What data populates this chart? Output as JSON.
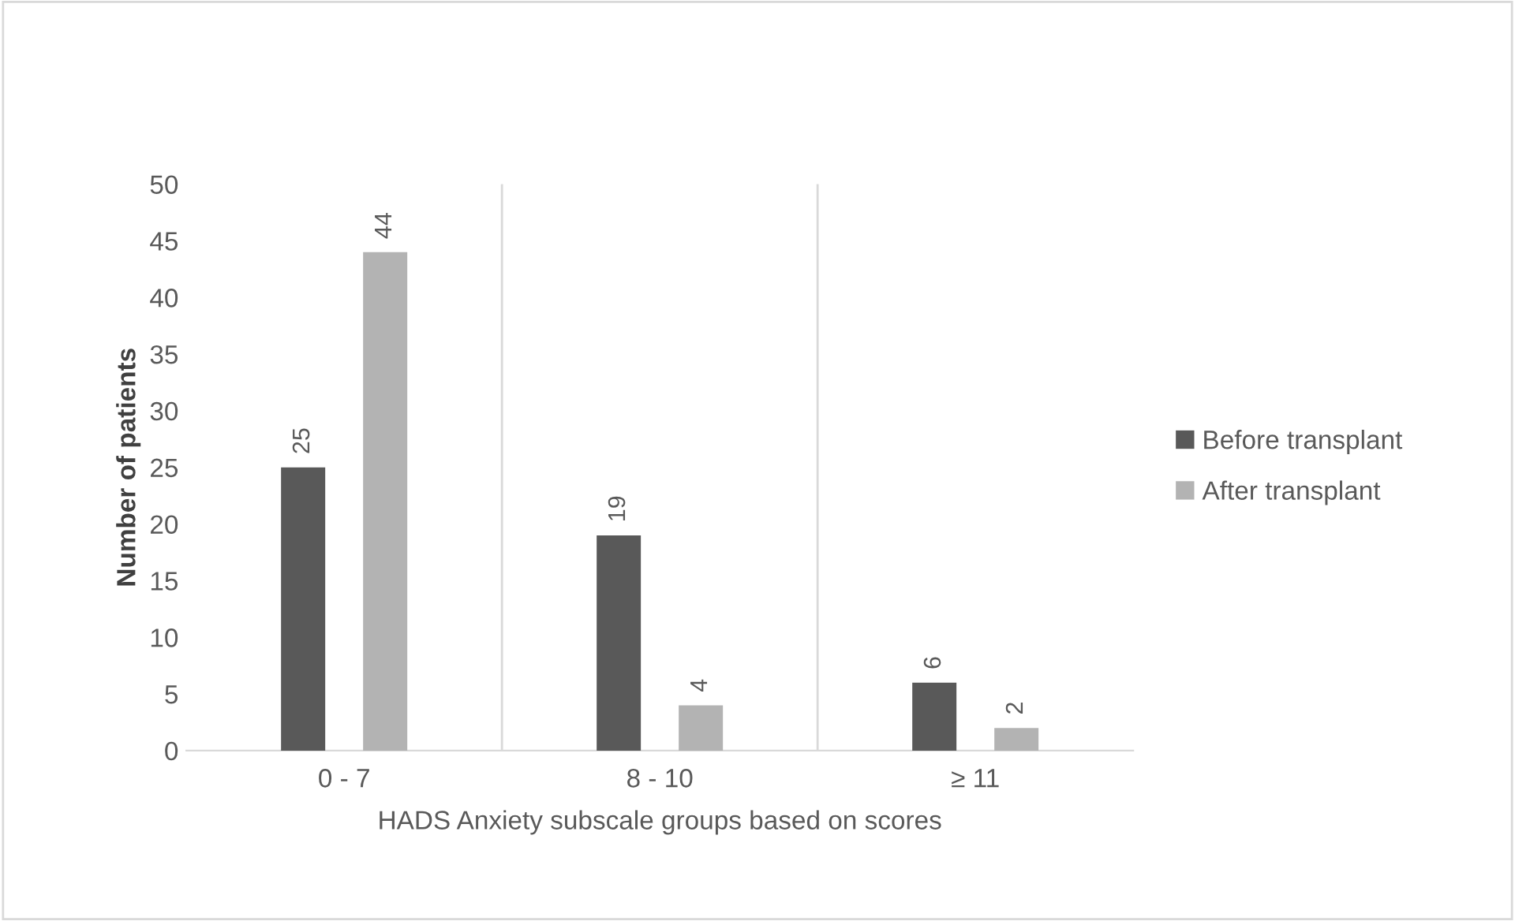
{
  "chart_data": {
    "type": "bar",
    "xlabel": "HADS Anxiety subscale groups based on scores",
    "ylabel": "Number of patients",
    "categories": [
      "0 - 7",
      "8 - 10",
      "≥ 11"
    ],
    "series": [
      {
        "name": "Before transplant",
        "color": "#595959",
        "values": [
          25,
          19,
          6
        ]
      },
      {
        "name": "After transplant",
        "color": "#b3b3b3",
        "values": [
          44,
          4,
          2
        ]
      }
    ],
    "ylim": [
      0,
      50
    ],
    "yticks": [
      0,
      5,
      10,
      15,
      20,
      25,
      30,
      35,
      40,
      45,
      50
    ],
    "grid": "x",
    "legend": "right",
    "data_labels": true
  }
}
